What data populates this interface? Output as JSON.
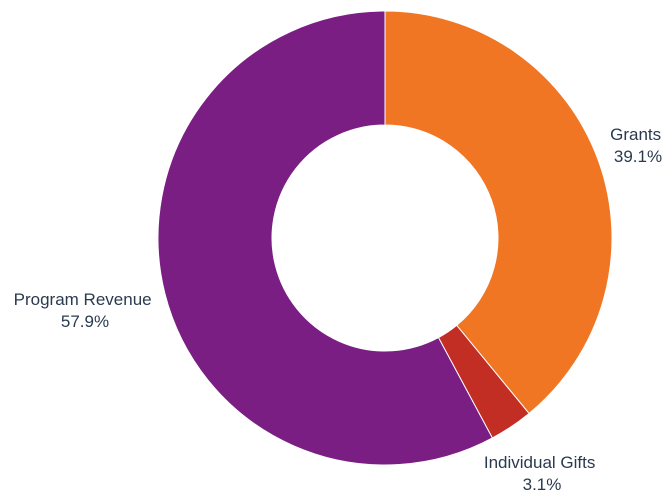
{
  "chart_data": {
    "type": "pie",
    "title": "",
    "slices": [
      {
        "label": "Grants",
        "value": 39.1,
        "value_label": "39.1%",
        "color": "#f07623"
      },
      {
        "label": "Individual Gifts",
        "value": 3.1,
        "value_label": "3.1%",
        "color": "#c22e24"
      },
      {
        "label": "Program Revenue",
        "value": 57.9,
        "value_label": "57.9%",
        "color": "#7a1e84"
      }
    ],
    "donut": true,
    "start_angle": "12 o'clock",
    "direction": "clockwise",
    "legend": "none",
    "labels": "outside slices"
  }
}
